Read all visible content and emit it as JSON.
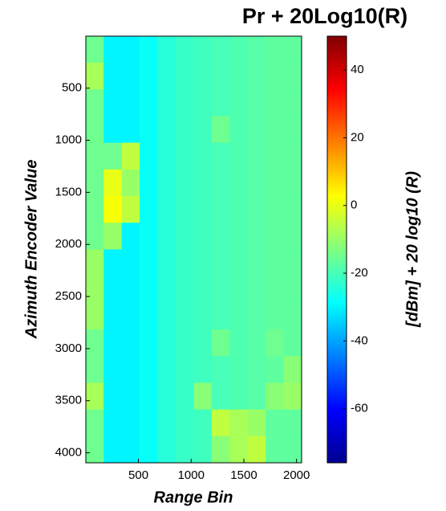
{
  "chart_data": {
    "type": "heatmap",
    "title": "Pr + 20Log10(R)",
    "xlabel": "Range Bin",
    "ylabel": "Azimuth Encoder Value",
    "colorbar_label": "[dBm] + 20 log10 (R)",
    "colormap": "jet",
    "xlim": [
      1,
      2048
    ],
    "ylim": [
      1,
      4096
    ],
    "y_reversed": true,
    "xticks": [
      500,
      1000,
      1500,
      2000
    ],
    "yticks": [
      500,
      1000,
      1500,
      2000,
      2500,
      3000,
      3500,
      4000
    ],
    "clim": [
      -76,
      50
    ],
    "cticks": [
      40,
      20,
      0,
      -20,
      -40,
      -60
    ],
    "x": [
      85,
      256,
      427,
      597,
      768,
      939,
      1109,
      1280,
      1451,
      1621,
      1792,
      1963
    ],
    "y": [
      128,
      384,
      640,
      896,
      1152,
      1408,
      1664,
      1920,
      2176,
      2432,
      2688,
      2944,
      3200,
      3456,
      3712,
      3968
    ],
    "z": [
      [
        -15,
        -30,
        -30,
        -28,
        -24,
        -22,
        -21,
        -20,
        -19,
        -18,
        -17,
        -17
      ],
      [
        -8,
        -30,
        -30,
        -28,
        -24,
        -22,
        -21,
        -20,
        -19,
        -18,
        -17,
        -17
      ],
      [
        -15,
        -30,
        -30,
        -28,
        -24,
        -22,
        -21,
        -20,
        -19,
        -18,
        -17,
        -17
      ],
      [
        -15,
        -30,
        -30,
        -28,
        -24,
        -22,
        -21,
        -15,
        -19,
        -18,
        -17,
        -17
      ],
      [
        -15,
        -15,
        -5,
        -28,
        -24,
        -22,
        -21,
        -20,
        -19,
        -18,
        -17,
        -17
      ],
      [
        -15,
        0,
        -10,
        -28,
        -24,
        -22,
        -21,
        -20,
        -19,
        -18,
        -17,
        -17
      ],
      [
        -15,
        2,
        -5,
        -28,
        -24,
        -22,
        -21,
        -20,
        -19,
        -18,
        -17,
        -17
      ],
      [
        -15,
        -10,
        -30,
        -28,
        -24,
        -22,
        -21,
        -20,
        -19,
        -18,
        -17,
        -17
      ],
      [
        -10,
        -30,
        -30,
        -28,
        -24,
        -22,
        -21,
        -20,
        -19,
        -18,
        -17,
        -17
      ],
      [
        -10,
        -30,
        -30,
        -28,
        -24,
        -22,
        -21,
        -20,
        -19,
        -18,
        -17,
        -17
      ],
      [
        -10,
        -30,
        -30,
        -28,
        -24,
        -22,
        -21,
        -20,
        -19,
        -18,
        -17,
        -17
      ],
      [
        -15,
        -30,
        -30,
        -28,
        -24,
        -22,
        -21,
        -15,
        -19,
        -18,
        -15,
        -17
      ],
      [
        -15,
        -30,
        -30,
        -28,
        -24,
        -22,
        -21,
        -20,
        -19,
        -18,
        -17,
        -12
      ],
      [
        -8,
        -30,
        -30,
        -28,
        -24,
        -22,
        -12,
        -20,
        -19,
        -18,
        -12,
        -10
      ],
      [
        -15,
        -30,
        -30,
        -28,
        -24,
        -22,
        -21,
        -5,
        -8,
        -10,
        -17,
        -17
      ],
      [
        -15,
        -30,
        -30,
        -28,
        -24,
        -22,
        -21,
        -12,
        -8,
        -5,
        -17,
        -17
      ]
    ]
  }
}
